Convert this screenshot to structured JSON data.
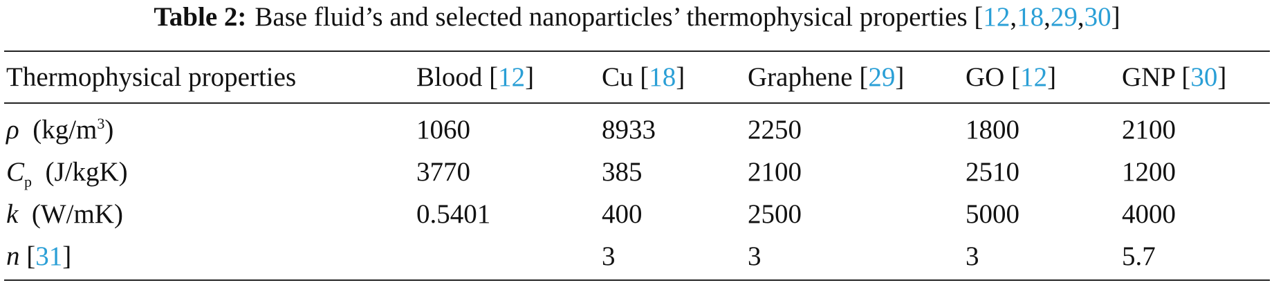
{
  "caption": {
    "label": "Table 2:",
    "parts": [
      "Base fluid’s and selected nanoparticles’ thermophysical properties [",
      {
        "ref": "12"
      },
      ",",
      {
        "ref": "18"
      },
      ",",
      {
        "ref": "29"
      },
      ",",
      {
        "ref": "30"
      },
      "]"
    ]
  },
  "table": {
    "header": [
      "Thermophysical properties",
      [
        "Blood [",
        {
          "ref": "12"
        },
        "]"
      ],
      [
        "Cu [",
        {
          "ref": "18"
        },
        "]"
      ],
      [
        "Graphene [",
        {
          "ref": "29"
        },
        "]"
      ],
      [
        "GO [",
        {
          "ref": "12"
        },
        "]"
      ],
      [
        "GNP [",
        {
          "ref": "30"
        },
        "]"
      ]
    ],
    "rows": [
      [
        [
          {
            "i": "ρ"
          },
          "  (kg/m",
          {
            "sup": "3"
          },
          ")"
        ],
        1060,
        8933,
        2250,
        1800,
        2100
      ],
      [
        [
          {
            "i": "C"
          },
          {
            "sub": "p"
          },
          "  (J/kgK)"
        ],
        3770,
        385,
        2100,
        2510,
        1200
      ],
      [
        [
          {
            "i": "k"
          },
          "  (W/mK)"
        ],
        0.5401,
        400,
        2500,
        5000,
        4000
      ],
      [
        [
          {
            "i": "n"
          },
          " [",
          {
            "ref": "31"
          },
          "]"
        ],
        null,
        3,
        3,
        3,
        5.7
      ]
    ]
  }
}
